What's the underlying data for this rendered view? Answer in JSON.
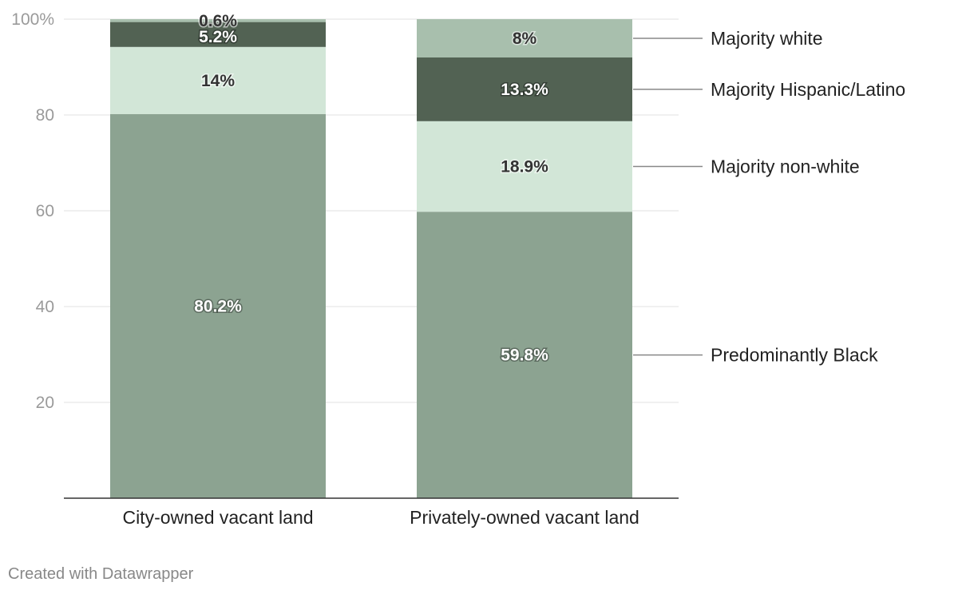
{
  "chart_data": {
    "type": "bar",
    "stacked": true,
    "categories": [
      "City-owned vacant land",
      "Privately-owned vacant land"
    ],
    "series": [
      {
        "name": "Predominantly Black",
        "values": [
          80.2,
          59.8
        ],
        "labels": [
          "80.2%",
          "59.8%"
        ],
        "color": "#8ca391",
        "label_style": "light"
      },
      {
        "name": "Majority non-white",
        "values": [
          14,
          18.9
        ],
        "labels": [
          "14%",
          "18.9%"
        ],
        "color": "#d2e6d7",
        "label_style": "dark"
      },
      {
        "name": "Majority Hispanic/Latino",
        "values": [
          5.2,
          13.3
        ],
        "labels": [
          "5.2%",
          "13.3%"
        ],
        "color": "#526253",
        "label_style": "light"
      },
      {
        "name": "Majority white",
        "values": [
          0.6,
          8
        ],
        "labels": [
          "0.6%",
          "8%"
        ],
        "color": "#a8bfad",
        "label_style": "dark"
      }
    ],
    "ylim": [
      0,
      100
    ],
    "yticks": [
      20,
      40,
      60,
      80,
      100
    ],
    "ytick_labels": [
      "20",
      "40",
      "60",
      "80",
      "100%"
    ],
    "grid": true,
    "legend": "right, inline labels",
    "title": "",
    "xlabel": "",
    "ylabel": ""
  },
  "footer": {
    "credit": "Created with Datawrapper"
  }
}
